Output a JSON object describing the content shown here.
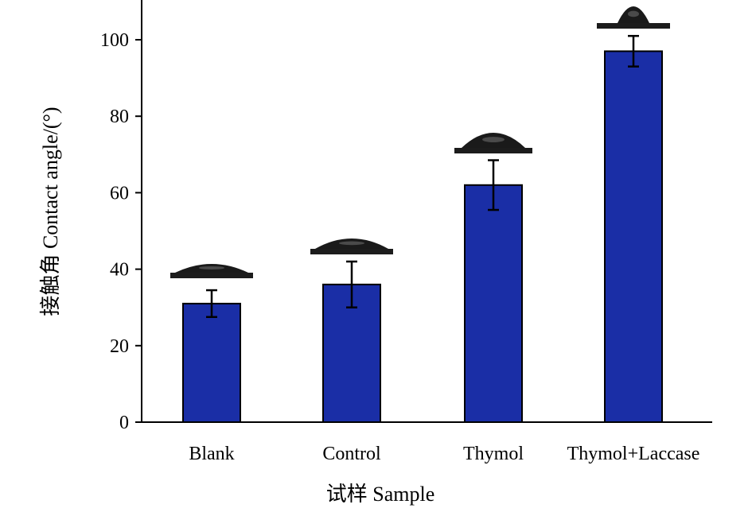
{
  "chart_data": {
    "type": "bar",
    "categories": [
      "Blank",
      "Control",
      "Thymol",
      "Thymol+Laccase"
    ],
    "values": [
      31,
      36,
      62,
      97
    ],
    "errors": [
      3.5,
      6,
      6.5,
      4
    ],
    "xlabel": "试样 Sample",
    "ylabel": "接触角 Contact angle/(°)",
    "ylim": [
      0,
      110
    ],
    "yticks": [
      0,
      20,
      40,
      60,
      80,
      100
    ],
    "grid": false,
    "legend": "none",
    "bar_color": "#1a2ea6",
    "annotations": "droplet images above each bar"
  }
}
